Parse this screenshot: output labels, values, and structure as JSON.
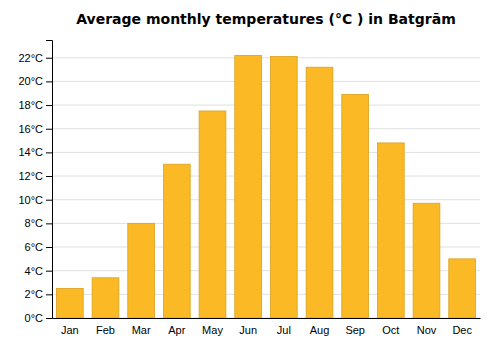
{
  "chart_data": {
    "type": "bar",
    "title": "Average monthly temperatures (°C ) in Batgrām",
    "categories": [
      "Jan",
      "Feb",
      "Mar",
      "Apr",
      "May",
      "Jun",
      "Jul",
      "Aug",
      "Sep",
      "Oct",
      "Nov",
      "Dec"
    ],
    "values": [
      2.5,
      3.4,
      8.0,
      13.0,
      17.5,
      22.2,
      22.1,
      21.2,
      18.9,
      14.8,
      9.7,
      5.0
    ],
    "color": "#FBBA25",
    "ylim": [
      0,
      23.5
    ],
    "yticks": [
      {
        "value": 0,
        "label": "0°C"
      },
      {
        "value": 2,
        "label": "2°C"
      },
      {
        "value": 4,
        "label": "4°C"
      },
      {
        "value": 6,
        "label": "6°C"
      },
      {
        "value": 8,
        "label": "8°C"
      },
      {
        "value": 10,
        "label": "10°C"
      },
      {
        "value": 12,
        "label": "12°C"
      },
      {
        "value": 14,
        "label": "14°C"
      },
      {
        "value": 16,
        "label": "16°C"
      },
      {
        "value": 18,
        "label": "18°C"
      },
      {
        "value": 20,
        "label": "20°C"
      },
      {
        "value": 22,
        "label": "22°C"
      }
    ],
    "grid": true
  }
}
